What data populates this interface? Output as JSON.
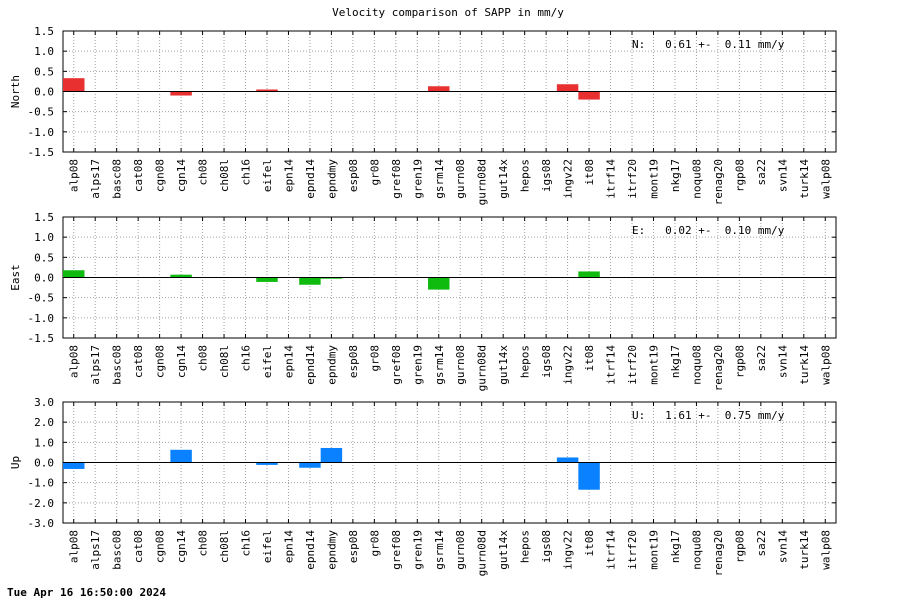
{
  "chart_data": {
    "type": "bar",
    "title": "Velocity comparison of SAPP in mm/y",
    "categories": [
      "alp08",
      "alps17",
      "basc08",
      "cat08",
      "cgn08",
      "cgn14",
      "ch08",
      "ch08l",
      "ch16",
      "eifel",
      "epn14",
      "epnd14",
      "epndmy",
      "esp08",
      "gr08",
      "gref08",
      "gren19",
      "gsrm14",
      "gurn08",
      "gurn08d",
      "gut14x",
      "hepos",
      "igs08",
      "ingv22",
      "it08",
      "itrf14",
      "itrf20",
      "mont19",
      "nkg17",
      "noqu08",
      "renag20",
      "rgp08",
      "sa22",
      "svn14",
      "turk14",
      "walp08"
    ],
    "grid": true,
    "panels": [
      {
        "ylabel": "North",
        "ylim": [
          -1.5,
          1.5
        ],
        "yticks": [
          1.5,
          1.0,
          0.5,
          0.0,
          -0.5,
          -1.0,
          -1.5
        ],
        "ytick_labels": [
          "1.5",
          "1.0",
          "0.5",
          "0.0",
          "-0.5",
          "-1.0",
          "-1.5"
        ],
        "color": "#e83030",
        "annotation": "N:   0.61 +-  0.11 mm/y",
        "values": [
          0.33,
          0,
          0,
          0,
          0,
          -0.1,
          0,
          0,
          0,
          0.05,
          0,
          0,
          0,
          0,
          0,
          0,
          0,
          0.13,
          0,
          0,
          0,
          0,
          0,
          0.18,
          -0.2,
          0,
          0,
          0,
          0,
          0,
          0,
          0,
          0,
          0,
          0,
          0
        ]
      },
      {
        "ylabel": "East",
        "ylim": [
          -1.5,
          1.5
        ],
        "yticks": [
          1.5,
          1.0,
          0.5,
          0.0,
          -0.5,
          -1.0,
          -1.5
        ],
        "ytick_labels": [
          "1.5",
          "1.0",
          "0.5",
          "0.0",
          "-0.5",
          "-1.0",
          "-1.5"
        ],
        "color": "#10bb10",
        "annotation": "E:   0.02 +-  0.10 mm/y",
        "values": [
          0.18,
          0,
          0,
          0,
          0,
          0.07,
          0,
          0,
          0,
          -0.11,
          0,
          -0.18,
          -0.03,
          0,
          0,
          0,
          0,
          -0.3,
          0,
          0,
          0,
          0,
          0,
          0,
          0.15,
          0,
          0,
          0,
          0,
          0,
          0,
          0,
          0,
          0,
          0,
          0
        ]
      },
      {
        "ylabel": "Up",
        "ylim": [
          -3.0,
          3.0
        ],
        "yticks": [
          3.0,
          2.0,
          1.0,
          0.0,
          -1.0,
          -2.0,
          -3.0
        ],
        "ytick_labels": [
          "3.0",
          "2.0",
          "1.0",
          "0.0",
          "-1.0",
          "-2.0",
          "-3.0"
        ],
        "color": "#0a82ff",
        "annotation": "U:   1.61 +-  0.75 mm/y",
        "values": [
          -0.32,
          0,
          0,
          0,
          0,
          0.63,
          0,
          0,
          0,
          -0.12,
          0,
          -0.26,
          0.72,
          0,
          0,
          0,
          0,
          0,
          0,
          0,
          0,
          0,
          0,
          0.25,
          -1.35,
          0,
          0,
          0,
          0,
          0,
          0,
          0,
          0,
          0,
          0,
          0
        ]
      }
    ]
  },
  "footer": {
    "timestamp": "Tue Apr 16 16:50:00 2024"
  }
}
